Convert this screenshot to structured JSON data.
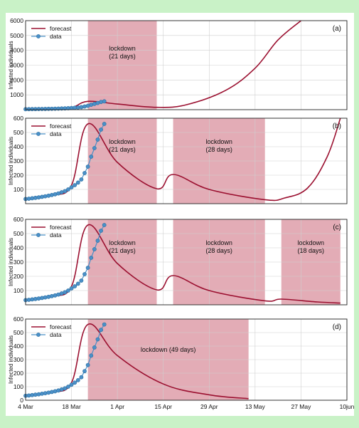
{
  "chart_data": [
    {
      "panel": "(a)",
      "type": "line",
      "ylabel": "Infected individuals",
      "ylim": [
        0,
        6000
      ],
      "yticks": [
        1000,
        2000,
        3000,
        4000,
        5000,
        6000
      ],
      "legend": {
        "forecast": "forecast",
        "data": "data",
        "position": "top-left"
      },
      "lockdowns": [
        {
          "start": "2020-03-23",
          "end": "2020-04-13",
          "label": "lockdown\n(21 days)"
        }
      ],
      "data_points": {
        "x_start": "2020-03-04",
        "interval_days": 1,
        "values": [
          33,
          35,
          38,
          41,
          44,
          48,
          52,
          56,
          61,
          66,
          72,
          80,
          88,
          100,
          115,
          130,
          148,
          170,
          215,
          260,
          330,
          390,
          450,
          520,
          560
        ]
      },
      "forecast": {
        "x": [
          "2020-03-04",
          "2020-03-12",
          "2020-03-18",
          "2020-03-23",
          "2020-04-01",
          "2020-04-13",
          "2020-04-22",
          "2020-05-04",
          "2020-05-13",
          "2020-05-20",
          "2020-05-27"
        ],
        "values": [
          33,
          60,
          130,
          560,
          380,
          160,
          330,
          1300,
          2800,
          4700,
          6000
        ]
      }
    },
    {
      "panel": "(b)",
      "type": "line",
      "ylabel": "Infected individuals",
      "ylim": [
        0,
        600
      ],
      "yticks": [
        100,
        200,
        300,
        400,
        500,
        600
      ],
      "legend": {
        "forecast": "forecast",
        "data": "data",
        "position": "top-left"
      },
      "lockdowns": [
        {
          "start": "2020-03-23",
          "end": "2020-04-13",
          "label": "lockdown\n(21 days)"
        },
        {
          "start": "2020-04-18",
          "end": "2020-05-16",
          "label": "lockdown\n(28 days)"
        }
      ],
      "data_points": {
        "x_start": "2020-03-04",
        "interval_days": 1,
        "values": [
          33,
          35,
          38,
          41,
          44,
          48,
          52,
          56,
          61,
          66,
          72,
          80,
          88,
          100,
          115,
          130,
          148,
          170,
          215,
          260,
          330,
          390,
          450,
          520,
          560
        ]
      },
      "forecast": {
        "x": [
          "2020-03-04",
          "2020-03-12",
          "2020-03-18",
          "2020-03-23",
          "2020-04-01",
          "2020-04-13",
          "2020-04-18",
          "2020-04-29",
          "2020-05-16",
          "2020-05-22",
          "2020-05-29",
          "2020-06-04",
          "2020-06-08"
        ],
        "values": [
          33,
          60,
          130,
          560,
          290,
          105,
          205,
          100,
          28,
          40,
          110,
          330,
          600
        ]
      }
    },
    {
      "panel": "(c)",
      "type": "line",
      "ylabel": "Infected individuals",
      "ylim": [
        0,
        600
      ],
      "yticks": [
        100,
        200,
        300,
        400,
        500,
        600
      ],
      "legend": {
        "forecast": "forecast",
        "data": "data",
        "position": "top-left"
      },
      "lockdowns": [
        {
          "start": "2020-03-23",
          "end": "2020-04-13",
          "label": "lockdown\n(21 days)"
        },
        {
          "start": "2020-04-18",
          "end": "2020-05-16",
          "label": "lockdown\n(28 days)"
        },
        {
          "start": "2020-05-21",
          "end": "2020-06-08",
          "label": "lockdown\n(18 days)"
        }
      ],
      "data_points": {
        "x_start": "2020-03-04",
        "interval_days": 1,
        "values": [
          33,
          35,
          38,
          41,
          44,
          48,
          52,
          56,
          61,
          66,
          72,
          80,
          88,
          100,
          115,
          130,
          148,
          170,
          215,
          260,
          330,
          390,
          450,
          520,
          560
        ]
      },
      "forecast": {
        "x": [
          "2020-03-04",
          "2020-03-12",
          "2020-03-18",
          "2020-03-23",
          "2020-04-01",
          "2020-04-13",
          "2020-04-18",
          "2020-04-29",
          "2020-05-16",
          "2020-05-21",
          "2020-06-01",
          "2020-06-08"
        ],
        "values": [
          33,
          60,
          130,
          560,
          290,
          105,
          205,
          100,
          28,
          40,
          20,
          12
        ]
      }
    },
    {
      "panel": "(d)",
      "type": "line",
      "ylabel": "Infected individuals",
      "ylim": [
        0,
        600
      ],
      "yticks": [
        0,
        100,
        200,
        300,
        400,
        500,
        600
      ],
      "xlabel": "",
      "xticks": [
        "4 Mar",
        "18 Mar",
        "1 Apr",
        "15 Apr",
        "29 Apr",
        "13 May",
        "27 May",
        "10jun"
      ],
      "legend": {
        "forecast": "forecast",
        "data": "data",
        "position": "top-left"
      },
      "lockdowns": [
        {
          "start": "2020-03-23",
          "end": "2020-05-11",
          "label": "lockdown (49 days)"
        }
      ],
      "data_points": {
        "x_start": "2020-03-04",
        "interval_days": 1,
        "values": [
          33,
          35,
          38,
          41,
          44,
          48,
          52,
          56,
          61,
          66,
          72,
          80,
          88,
          100,
          115,
          130,
          148,
          170,
          215,
          260,
          330,
          390,
          450,
          520,
          560
        ]
      },
      "forecast": {
        "x": [
          "2020-03-04",
          "2020-03-12",
          "2020-03-18",
          "2020-03-23",
          "2020-04-01",
          "2020-04-15",
          "2020-04-29",
          "2020-05-11"
        ],
        "values": [
          33,
          60,
          130,
          560,
          330,
          120,
          40,
          12
        ]
      }
    }
  ],
  "colors": {
    "forecast": "#9b1030",
    "data_fill": "#4a90c8",
    "data_edge": "#2e6fa0",
    "lockdown": "#d9909e",
    "grid": "#cfcfcf",
    "background": "#c9f2c7"
  }
}
